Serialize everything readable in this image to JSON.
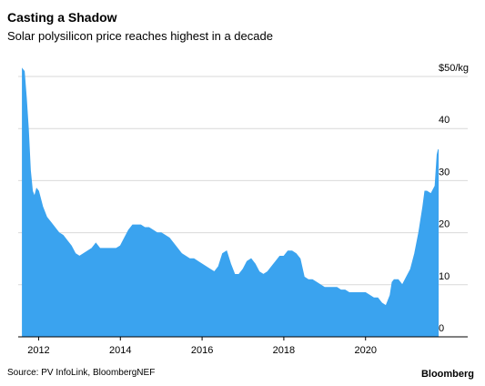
{
  "chart_data": {
    "type": "area",
    "title": "Casting a Shadow",
    "subtitle": "Solar polysilicon price reaches highest in a decade",
    "source": "Source: PV InfoLink, BloombergNEF",
    "brand": "Bloomberg",
    "color": "#3aa3ef",
    "x": [
      2011.6,
      2011.65,
      2011.7,
      2011.75,
      2011.8,
      2011.85,
      2011.9,
      2011.95,
      2012.0,
      2012.1,
      2012.2,
      2012.3,
      2012.4,
      2012.5,
      2012.6,
      2012.7,
      2012.8,
      2012.9,
      2013.0,
      2013.1,
      2013.2,
      2013.3,
      2013.4,
      2013.5,
      2013.6,
      2013.7,
      2013.8,
      2013.9,
      2014.0,
      2014.1,
      2014.2,
      2014.3,
      2014.4,
      2014.5,
      2014.6,
      2014.7,
      2014.8,
      2014.9,
      2015.0,
      2015.1,
      2015.2,
      2015.3,
      2015.4,
      2015.5,
      2015.6,
      2015.7,
      2015.8,
      2015.9,
      2016.0,
      2016.1,
      2016.2,
      2016.3,
      2016.4,
      2016.5,
      2016.6,
      2016.7,
      2016.8,
      2016.9,
      2017.0,
      2017.1,
      2017.2,
      2017.3,
      2017.4,
      2017.5,
      2017.6,
      2017.7,
      2017.8,
      2017.9,
      2018.0,
      2018.1,
      2018.2,
      2018.3,
      2018.4,
      2018.5,
      2018.6,
      2018.7,
      2018.8,
      2018.9,
      2019.0,
      2019.1,
      2019.2,
      2019.3,
      2019.4,
      2019.5,
      2019.6,
      2019.7,
      2019.8,
      2019.9,
      2020.0,
      2020.1,
      2020.2,
      2020.3,
      2020.4,
      2020.5,
      2020.6,
      2020.65,
      2020.7,
      2020.8,
      2020.9,
      2021.0,
      2021.1,
      2021.2,
      2021.3,
      2021.4,
      2021.45,
      2021.5,
      2021.6,
      2021.7,
      2021.75,
      2021.78
    ],
    "values": [
      51.5,
      51,
      46,
      40,
      32,
      28,
      27,
      28.5,
      28,
      25,
      23,
      22,
      21,
      20,
      19.5,
      18.5,
      17.5,
      16,
      15.5,
      16,
      16.5,
      17,
      18,
      17,
      17,
      17,
      17,
      17,
      17.5,
      19,
      20.5,
      21.5,
      21.5,
      21.5,
      21,
      21,
      20.5,
      20,
      20,
      19.5,
      19,
      18,
      17,
      16,
      15.5,
      15,
      15,
      14.5,
      14,
      13.5,
      13,
      12.5,
      13.5,
      16,
      16.5,
      14,
      12,
      12,
      13,
      14.5,
      15,
      14,
      12.5,
      12,
      12.5,
      13.5,
      14.5,
      15.5,
      15.5,
      16.5,
      16.5,
      16,
      15,
      11.5,
      11,
      11,
      10.5,
      10,
      9.5,
      9.5,
      9.5,
      9.5,
      9,
      9,
      8.5,
      8.5,
      8.5,
      8.5,
      8.5,
      8,
      7.5,
      7.5,
      6.5,
      6,
      8,
      10.5,
      11,
      11,
      10,
      11.5,
      13,
      16,
      20,
      25,
      28,
      28,
      27.5,
      29,
      35,
      36
    ],
    "xlim": [
      2011.5,
      2022.5
    ],
    "xticks": [
      2012,
      2014,
      2016,
      2018,
      2020
    ],
    "ylim": [
      0,
      52
    ],
    "yticks": [
      0,
      10,
      20,
      30,
      40,
      {
        "value": 50,
        "label": "$50/kg"
      }
    ],
    "grid": true
  }
}
